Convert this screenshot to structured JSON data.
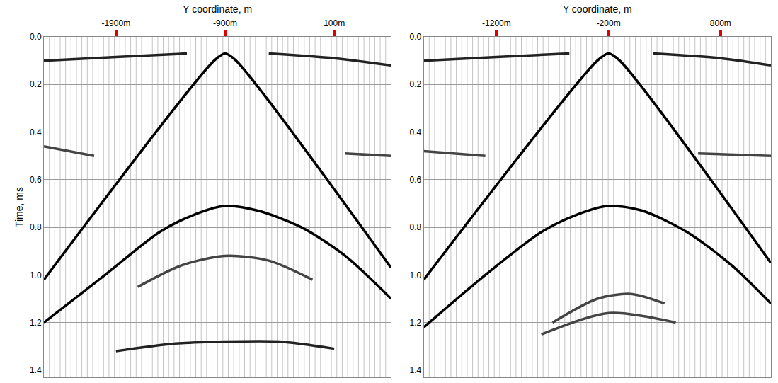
{
  "chart_data": [
    {
      "type": "line",
      "xlabel": "Y coordinate, m",
      "ylabel": "Time, ms",
      "xlim": [
        -2560,
        620
      ],
      "xticks": [
        {
          "value": -1900,
          "label": "-1900m"
        },
        {
          "value": -900,
          "label": "-900m"
        },
        {
          "value": 100,
          "label": "100m"
        }
      ],
      "ylim": [
        1.43,
        0
      ],
      "yticks": [
        {
          "value": 0,
          "label": "0.0"
        },
        0.2,
        0.4,
        0.6,
        0.8,
        {
          "value": 1,
          "label": "1.0"
        },
        1.2,
        1.4
      ],
      "grid": true,
      "series": [
        {
          "color": "#000000",
          "x": [
            -2560,
            -1000,
            -900,
            -800,
            620
          ],
          "values": [
            1.02,
            0.1,
            0.07,
            0.1,
            0.97
          ]
        },
        {
          "color": "#000000",
          "x": [
            -2560,
            -2000,
            -1500,
            -1200,
            -900,
            -600,
            -200,
            200,
            620
          ],
          "values": [
            1.2,
            1.0,
            0.82,
            0.75,
            0.71,
            0.73,
            0.8,
            0.92,
            1.1
          ]
        },
        {
          "color": "#444444",
          "x": [
            -1700,
            -1300,
            -900,
            -500,
            -100
          ],
          "values": [
            1.05,
            0.96,
            0.92,
            0.94,
            1.02
          ]
        },
        {
          "color": "#222222",
          "x": [
            -1900,
            -1400,
            -900,
            -400,
            100
          ],
          "values": [
            1.32,
            1.29,
            1.28,
            1.28,
            1.31
          ]
        },
        {
          "color": "#222222",
          "x": [
            -2560,
            -1900,
            -1250
          ],
          "values": [
            0.1,
            0.085,
            0.07
          ]
        },
        {
          "color": "#222222",
          "x": [
            -500,
            100,
            620
          ],
          "values": [
            0.07,
            0.09,
            0.12
          ]
        },
        {
          "color": "#444444",
          "x": [
            -2560,
            -2100
          ],
          "values": [
            0.46,
            0.5
          ]
        },
        {
          "color": "#444444",
          "x": [
            200,
            620
          ],
          "values": [
            0.49,
            0.5
          ]
        }
      ]
    },
    {
      "type": "line",
      "xlabel": "Y coordinate, m",
      "xlim": [
        -1850,
        1250
      ],
      "xticks": [
        {
          "value": -1200,
          "label": "-1200m"
        },
        {
          "value": -200,
          "label": "-200m"
        },
        {
          "value": 800,
          "label": "800m"
        }
      ],
      "ylim": [
        1.43,
        0
      ],
      "yticks": [
        {
          "value": 0,
          "label": "0.0"
        },
        0.2,
        0.4,
        0.6,
        0.8,
        {
          "value": 1,
          "label": "1.0"
        },
        1.2,
        1.4
      ],
      "grid": true,
      "series": [
        {
          "color": "#000000",
          "x": [
            -1850,
            -300,
            -200,
            -100,
            1250
          ],
          "values": [
            1.02,
            0.1,
            0.07,
            0.1,
            0.95
          ]
        },
        {
          "color": "#000000",
          "x": [
            -1850,
            -1300,
            -800,
            -500,
            -200,
            100,
            500,
            900,
            1250
          ],
          "values": [
            1.22,
            1.0,
            0.82,
            0.75,
            0.71,
            0.73,
            0.82,
            0.96,
            1.12
          ]
        },
        {
          "color": "#444444",
          "x": [
            -700,
            -300,
            0,
            300
          ],
          "values": [
            1.2,
            1.1,
            1.08,
            1.12
          ]
        },
        {
          "color": "#444444",
          "x": [
            -800,
            -200,
            400
          ],
          "values": [
            1.25,
            1.16,
            1.2
          ]
        },
        {
          "color": "#222222",
          "x": [
            -1850,
            -1200,
            -550
          ],
          "values": [
            0.1,
            0.085,
            0.07
          ]
        },
        {
          "color": "#222222",
          "x": [
            200,
            800,
            1250
          ],
          "values": [
            0.07,
            0.09,
            0.12
          ]
        },
        {
          "color": "#444444",
          "x": [
            -1850,
            -1300
          ],
          "values": [
            0.48,
            0.5
          ]
        },
        {
          "color": "#444444",
          "x": [
            600,
            1250
          ],
          "values": [
            0.49,
            0.5
          ]
        }
      ]
    }
  ]
}
